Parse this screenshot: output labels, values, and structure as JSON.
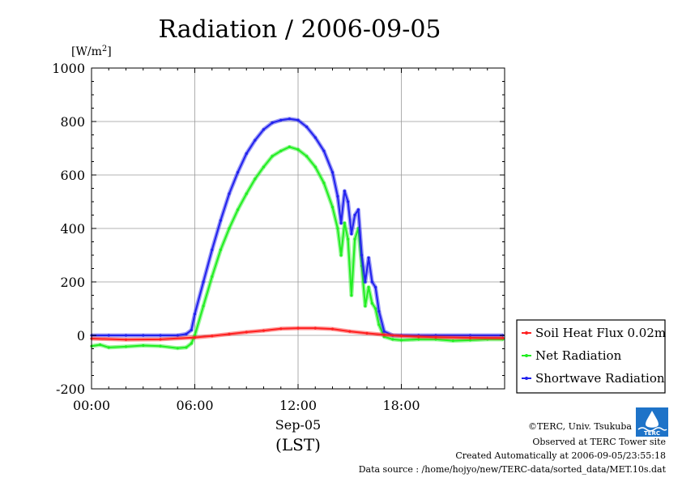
{
  "chart_data": {
    "type": "line",
    "title": "Radiation / 2006-09-05",
    "unit_label": "[W/m",
    "unit_sup": "2",
    "unit_close": "]",
    "ylim": [
      -200,
      1000
    ],
    "yticks": [
      -200,
      0,
      200,
      400,
      600,
      800,
      1000
    ],
    "xlim": [
      0,
      24
    ],
    "xticks": [
      0,
      6,
      12,
      18
    ],
    "xtick_labels": [
      "00:00",
      "06:00",
      "12:00",
      "18:00"
    ],
    "x_date_label": "Sep-05",
    "x_timezone_label": "(LST)",
    "grid": true,
    "legend_position": "right-bottom",
    "series": [
      {
        "name": "Soil Heat Flux 0.02m",
        "color": "#ff2020",
        "x": [
          0,
          2,
          4,
          6,
          7,
          8,
          9,
          10,
          11,
          12,
          13,
          14,
          15,
          16,
          17,
          18,
          19,
          20,
          22,
          23.9
        ],
        "y": [
          -12,
          -16,
          -15,
          -8,
          -2,
          5,
          12,
          18,
          25,
          27,
          27,
          24,
          15,
          8,
          2,
          -2,
          -5,
          -7,
          -9,
          -10
        ]
      },
      {
        "name": "Net Radiation",
        "color": "#22ee22",
        "x": [
          0,
          0.5,
          1,
          2,
          3,
          4,
          5,
          5.5,
          5.8,
          6,
          6.5,
          7,
          7.5,
          8,
          8.5,
          9,
          9.5,
          10,
          10.5,
          11,
          11.5,
          12,
          12.5,
          13,
          13.5,
          14,
          14.3,
          14.5,
          14.7,
          14.9,
          15.1,
          15.3,
          15.5,
          15.7,
          15.9,
          16.1,
          16.3,
          16.5,
          16.7,
          17,
          17.5,
          18,
          19,
          20,
          21,
          22,
          23,
          23.9
        ],
        "y": [
          -40,
          -35,
          -45,
          -42,
          -38,
          -40,
          -48,
          -45,
          -30,
          0,
          110,
          220,
          320,
          400,
          470,
          530,
          585,
          630,
          670,
          690,
          705,
          695,
          670,
          630,
          570,
          480,
          400,
          300,
          420,
          360,
          150,
          360,
          400,
          260,
          110,
          180,
          120,
          100,
          40,
          -5,
          -15,
          -18,
          -15,
          -15,
          -20,
          -18,
          -15,
          -15
        ]
      },
      {
        "name": "Shortwave Radiation",
        "color": "#2222ee",
        "x": [
          0,
          1,
          2,
          3,
          4,
          5,
          5.5,
          5.8,
          6,
          6.5,
          7,
          7.5,
          8,
          8.5,
          9,
          9.5,
          10,
          10.5,
          11,
          11.5,
          12,
          12.5,
          13,
          13.5,
          14,
          14.3,
          14.5,
          14.7,
          14.9,
          15.1,
          15.3,
          15.5,
          15.7,
          15.9,
          16.1,
          16.3,
          16.5,
          16.7,
          17,
          17.5,
          18,
          19,
          20,
          22,
          23.9
        ],
        "y": [
          0,
          0,
          0,
          0,
          0,
          0,
          5,
          20,
          80,
          200,
          320,
          430,
          530,
          610,
          680,
          730,
          770,
          795,
          805,
          810,
          805,
          780,
          740,
          690,
          610,
          520,
          420,
          540,
          500,
          380,
          450,
          470,
          300,
          200,
          290,
          200,
          180,
          90,
          15,
          0,
          0,
          0,
          0,
          0,
          0
        ]
      }
    ]
  },
  "footer": {
    "copyright": "©TERC, Univ. Tsukuba",
    "observed": "Observed at TERC Tower site",
    "created": "Created Automatically at 2006-09-05/23:55:18",
    "source": "Data source : /home/hojyo/new/TERC-data/sorted_data/MET.10s.dat",
    "logo_text": "TERC"
  }
}
